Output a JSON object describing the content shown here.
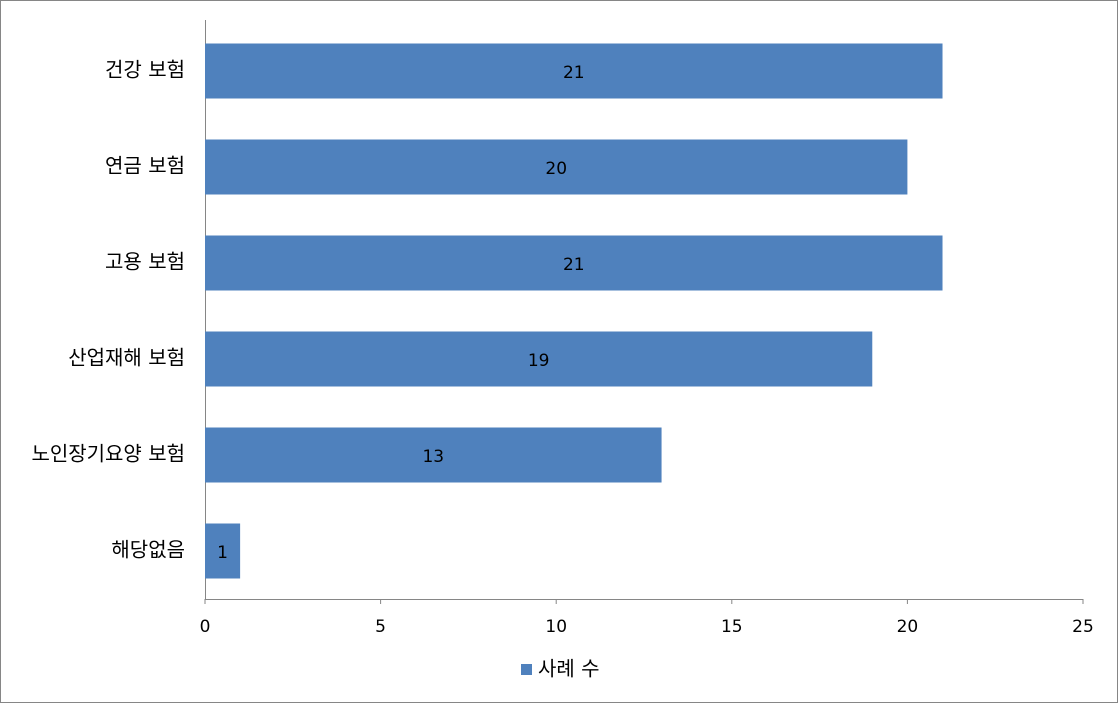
{
  "chart_data": {
    "type": "bar",
    "orientation": "horizontal",
    "categories": [
      "건강 보험",
      "연금 보험",
      "고용 보험",
      "산업재해 보험",
      "노인장기요양 보험",
      "해당없음"
    ],
    "series": [
      {
        "name": "사례 수",
        "color": "#4f81bd",
        "values": [
          21,
          20,
          21,
          19,
          13,
          1
        ]
      }
    ],
    "xlim": [
      0,
      25
    ],
    "xticks": [
      0,
      5,
      10,
      15,
      20,
      25
    ],
    "grid": false,
    "legend": "bottom"
  }
}
